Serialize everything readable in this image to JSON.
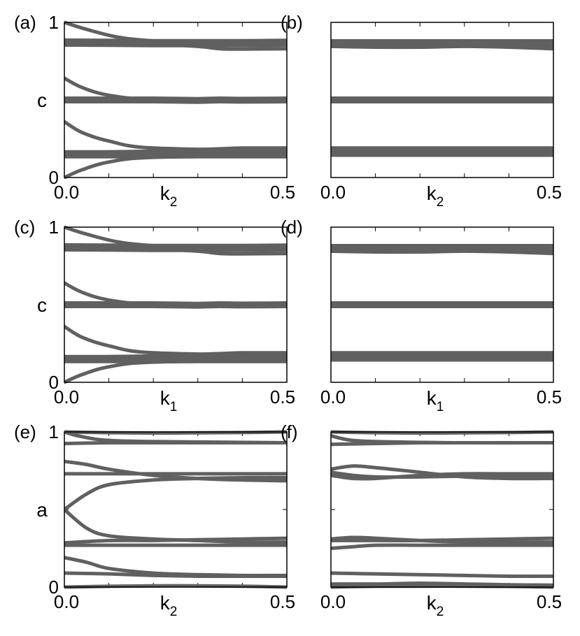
{
  "style": {
    "curve_color": "#606060",
    "frame_color": "#000000"
  },
  "chart_data": [
    {
      "id": "a",
      "panel_label": "(a)",
      "type": "line",
      "xlabel": {
        "base": "k",
        "sub": "2"
      },
      "ylabel": "c",
      "xlim": [
        0,
        0.5
      ],
      "ylim": [
        0,
        1
      ],
      "xticklabels": [
        "0.0",
        "0.5"
      ],
      "yticklabels": [
        "0",
        "1"
      ],
      "series": [
        {
          "x": [
            0,
            0.05,
            0.12,
            0.2,
            0.3,
            0.4,
            0.5
          ],
          "y": [
            1.0,
            0.955,
            0.905,
            0.88,
            0.87,
            0.87,
            0.87
          ],
          "width": 5
        },
        {
          "x": [
            0,
            0.1,
            0.2,
            0.3,
            0.4,
            0.5
          ],
          "y": [
            0.87,
            0.868,
            0.866,
            0.866,
            0.866,
            0.868
          ],
          "width": 12
        },
        {
          "x": [
            0,
            0.1,
            0.2,
            0.3,
            0.35,
            0.4,
            0.5
          ],
          "y": [
            0.855,
            0.855,
            0.86,
            0.845,
            0.83,
            0.828,
            0.83
          ],
          "width": 5
        },
        {
          "x": [
            0,
            0.04,
            0.1,
            0.2,
            0.5
          ],
          "y": [
            0.64,
            0.58,
            0.53,
            0.505,
            0.5
          ],
          "width": 5
        },
        {
          "x": [
            0,
            0.1,
            0.2,
            0.3,
            0.35,
            0.4,
            0.5
          ],
          "y": [
            0.5,
            0.5,
            0.5,
            0.497,
            0.5,
            0.498,
            0.5
          ],
          "width": 10
        },
        {
          "x": [
            0,
            0.04,
            0.1,
            0.2,
            0.5
          ],
          "y": [
            0.36,
            0.29,
            0.235,
            0.19,
            0.175
          ],
          "width": 5
        },
        {
          "x": [
            0,
            0.1,
            0.2,
            0.3,
            0.35,
            0.4,
            0.5
          ],
          "y": [
            0.155,
            0.165,
            0.17,
            0.18,
            0.185,
            0.19,
            0.19
          ],
          "width": 5
        },
        {
          "x": [
            0,
            0.1,
            0.2,
            0.3,
            0.4,
            0.5
          ],
          "y": [
            0.15,
            0.15,
            0.15,
            0.15,
            0.15,
            0.15
          ],
          "width": 12
        },
        {
          "x": [
            0,
            0.04,
            0.1,
            0.2,
            0.5
          ],
          "y": [
            0.0,
            0.05,
            0.1,
            0.13,
            0.14
          ],
          "width": 5
        }
      ]
    },
    {
      "id": "b",
      "panel_label": "(b)",
      "type": "line",
      "xlabel": {
        "base": "k",
        "sub": "2"
      },
      "ylabel": "",
      "xlim": [
        0,
        0.5
      ],
      "ylim": [
        0,
        1
      ],
      "xticklabels": [
        "0.0",
        "0.5"
      ],
      "yticklabels": [],
      "series": [
        {
          "x": [
            0,
            0.1,
            0.2,
            0.3,
            0.4,
            0.5
          ],
          "y": [
            0.845,
            0.84,
            0.84,
            0.845,
            0.84,
            0.83
          ],
          "width": 5
        },
        {
          "x": [
            0,
            0.1,
            0.2,
            0.3,
            0.4,
            0.5
          ],
          "y": [
            0.865,
            0.865,
            0.865,
            0.865,
            0.865,
            0.865
          ],
          "width": 12
        },
        {
          "x": [
            0,
            0.1,
            0.2,
            0.3,
            0.4,
            0.5
          ],
          "y": [
            0.5,
            0.5,
            0.5,
            0.5,
            0.5,
            0.5
          ],
          "width": 10
        },
        {
          "x": [
            0,
            0.1,
            0.2,
            0.3,
            0.4,
            0.5
          ],
          "y": [
            0.19,
            0.19,
            0.19,
            0.19,
            0.19,
            0.19
          ],
          "width": 5
        },
        {
          "x": [
            0,
            0.1,
            0.2,
            0.3,
            0.4,
            0.5
          ],
          "y": [
            0.16,
            0.16,
            0.16,
            0.16,
            0.16,
            0.16
          ],
          "width": 12
        }
      ]
    },
    {
      "id": "c",
      "panel_label": "(c)",
      "type": "line",
      "xlabel": {
        "base": "k",
        "sub": "1"
      },
      "ylabel": "c",
      "xlim": [
        0,
        0.5
      ],
      "ylim": [
        0,
        1
      ],
      "xticklabels": [
        "0.0",
        "0.5"
      ],
      "yticklabels": [
        "0",
        "1"
      ],
      "series": [
        {
          "x": [
            0,
            0.05,
            0.12,
            0.2,
            0.3,
            0.4,
            0.5
          ],
          "y": [
            1.0,
            0.955,
            0.905,
            0.88,
            0.87,
            0.87,
            0.87
          ],
          "width": 5
        },
        {
          "x": [
            0,
            0.1,
            0.2,
            0.3,
            0.4,
            0.5
          ],
          "y": [
            0.87,
            0.868,
            0.866,
            0.866,
            0.866,
            0.868
          ],
          "width": 12
        },
        {
          "x": [
            0,
            0.1,
            0.2,
            0.3,
            0.35,
            0.4,
            0.5
          ],
          "y": [
            0.855,
            0.855,
            0.86,
            0.845,
            0.83,
            0.828,
            0.83
          ],
          "width": 5
        },
        {
          "x": [
            0,
            0.04,
            0.1,
            0.2,
            0.5
          ],
          "y": [
            0.64,
            0.58,
            0.53,
            0.505,
            0.5
          ],
          "width": 5
        },
        {
          "x": [
            0,
            0.1,
            0.2,
            0.3,
            0.35,
            0.4,
            0.5
          ],
          "y": [
            0.5,
            0.5,
            0.5,
            0.497,
            0.5,
            0.498,
            0.5
          ],
          "width": 10
        },
        {
          "x": [
            0,
            0.04,
            0.1,
            0.2,
            0.5
          ],
          "y": [
            0.36,
            0.29,
            0.235,
            0.19,
            0.175
          ],
          "width": 5
        },
        {
          "x": [
            0,
            0.1,
            0.2,
            0.3,
            0.35,
            0.4,
            0.5
          ],
          "y": [
            0.155,
            0.165,
            0.17,
            0.18,
            0.185,
            0.19,
            0.19
          ],
          "width": 5
        },
        {
          "x": [
            0,
            0.1,
            0.2,
            0.3,
            0.4,
            0.5
          ],
          "y": [
            0.15,
            0.15,
            0.15,
            0.15,
            0.15,
            0.15
          ],
          "width": 12
        },
        {
          "x": [
            0,
            0.04,
            0.1,
            0.2,
            0.5
          ],
          "y": [
            0.0,
            0.05,
            0.1,
            0.13,
            0.14
          ],
          "width": 5
        }
      ]
    },
    {
      "id": "d",
      "panel_label": "(d)",
      "type": "line",
      "xlabel": {
        "base": "k",
        "sub": "1"
      },
      "ylabel": "",
      "xlim": [
        0,
        0.5
      ],
      "ylim": [
        0,
        1
      ],
      "xticklabels": [
        "0.0",
        "0.5"
      ],
      "yticklabels": [],
      "series": [
        {
          "x": [
            0,
            0.1,
            0.2,
            0.3,
            0.4,
            0.5
          ],
          "y": [
            0.845,
            0.84,
            0.84,
            0.845,
            0.84,
            0.83
          ],
          "width": 5
        },
        {
          "x": [
            0,
            0.1,
            0.2,
            0.3,
            0.4,
            0.5
          ],
          "y": [
            0.865,
            0.865,
            0.865,
            0.865,
            0.865,
            0.865
          ],
          "width": 12
        },
        {
          "x": [
            0,
            0.1,
            0.2,
            0.3,
            0.4,
            0.5
          ],
          "y": [
            0.5,
            0.5,
            0.5,
            0.5,
            0.5,
            0.5
          ],
          "width": 10
        },
        {
          "x": [
            0,
            0.1,
            0.2,
            0.3,
            0.4,
            0.5
          ],
          "y": [
            0.19,
            0.19,
            0.19,
            0.19,
            0.19,
            0.19
          ],
          "width": 5
        },
        {
          "x": [
            0,
            0.1,
            0.2,
            0.3,
            0.4,
            0.5
          ],
          "y": [
            0.16,
            0.16,
            0.16,
            0.16,
            0.16,
            0.16
          ],
          "width": 12
        }
      ]
    },
    {
      "id": "e",
      "panel_label": "(e)",
      "type": "line",
      "xlabel": {
        "base": "k",
        "sub": "2"
      },
      "ylabel": "a",
      "xlim": [
        0,
        0.5
      ],
      "ylim": [
        0,
        1
      ],
      "xticklabels": [
        "0.0",
        "0.5"
      ],
      "yticklabels": [
        "0",
        "1"
      ],
      "series": [
        {
          "x": [
            0,
            0.1,
            0.2,
            0.3,
            0.4,
            0.5
          ],
          "y": [
            1.0,
            0.995,
            0.993,
            0.994,
            0.996,
            1.0
          ],
          "width": 5
        },
        {
          "x": [
            0,
            0.03,
            0.08,
            0.15,
            0.3,
            0.5
          ],
          "y": [
            1.0,
            0.975,
            0.95,
            0.94,
            0.935,
            0.93
          ],
          "width": 5
        },
        {
          "x": [
            0,
            0.1,
            0.2,
            0.3,
            0.4,
            0.5
          ],
          "y": [
            0.925,
            0.93,
            0.93,
            0.93,
            0.93,
            0.93
          ],
          "width": 5
        },
        {
          "x": [
            0,
            0.05,
            0.1,
            0.2,
            0.3,
            0.4,
            0.5
          ],
          "y": [
            0.81,
            0.79,
            0.76,
            0.72,
            0.7,
            0.69,
            0.685
          ],
          "width": 5
        },
        {
          "x": [
            0,
            0.05,
            0.1,
            0.2,
            0.3,
            0.4,
            0.5
          ],
          "y": [
            0.5,
            0.6,
            0.66,
            0.69,
            0.7,
            0.705,
            0.705
          ],
          "width": 5
        },
        {
          "x": [
            0,
            0.1,
            0.2,
            0.3,
            0.4,
            0.5
          ],
          "y": [
            0.73,
            0.73,
            0.73,
            0.73,
            0.73,
            0.73
          ],
          "width": 5
        },
        {
          "x": [
            0,
            0.05,
            0.1,
            0.2,
            0.3,
            0.4,
            0.5
          ],
          "y": [
            0.5,
            0.38,
            0.33,
            0.31,
            0.3,
            0.29,
            0.29
          ],
          "width": 5
        },
        {
          "x": [
            0,
            0.1,
            0.2,
            0.3,
            0.4,
            0.5
          ],
          "y": [
            0.285,
            0.3,
            0.3,
            0.305,
            0.31,
            0.315
          ],
          "width": 5
        },
        {
          "x": [
            0,
            0.1,
            0.2,
            0.3,
            0.4,
            0.5
          ],
          "y": [
            0.27,
            0.27,
            0.27,
            0.27,
            0.27,
            0.27
          ],
          "width": 5
        },
        {
          "x": [
            0,
            0.05,
            0.1,
            0.2,
            0.3,
            0.4,
            0.5
          ],
          "y": [
            0.19,
            0.16,
            0.12,
            0.09,
            0.08,
            0.075,
            0.075
          ],
          "width": 5
        },
        {
          "x": [
            0,
            0.1,
            0.2,
            0.3,
            0.4,
            0.5
          ],
          "y": [
            0.09,
            0.085,
            0.075,
            0.07,
            0.07,
            0.07
          ],
          "width": 5
        },
        {
          "x": [
            0,
            0.1,
            0.2,
            0.3,
            0.4,
            0.5
          ],
          "y": [
            0.0,
            0.005,
            0.008,
            0.008,
            0.006,
            0.0
          ],
          "width": 5
        }
      ]
    },
    {
      "id": "f",
      "panel_label": "(f)",
      "type": "line",
      "xlabel": {
        "base": "k",
        "sub": "2"
      },
      "ylabel": "",
      "xlim": [
        0,
        0.5
      ],
      "ylim": [
        0,
        1
      ],
      "xticklabels": [
        "0.0",
        "0.5"
      ],
      "yticklabels": [],
      "series": [
        {
          "x": [
            0,
            0.1,
            0.2,
            0.3,
            0.4,
            0.5
          ],
          "y": [
            1.0,
            0.995,
            0.993,
            0.994,
            0.996,
            1.0
          ],
          "width": 5
        },
        {
          "x": [
            0,
            0.05,
            0.15,
            0.3,
            0.5
          ],
          "y": [
            0.975,
            0.945,
            0.935,
            0.93,
            0.93
          ],
          "width": 5
        },
        {
          "x": [
            0,
            0.1,
            0.2,
            0.3,
            0.4,
            0.5
          ],
          "y": [
            0.92,
            0.925,
            0.93,
            0.93,
            0.93,
            0.93
          ],
          "width": 5
        },
        {
          "x": [
            0,
            0.05,
            0.1,
            0.2,
            0.3,
            0.4,
            0.5
          ],
          "y": [
            0.76,
            0.78,
            0.77,
            0.74,
            0.71,
            0.7,
            0.7
          ],
          "width": 5
        },
        {
          "x": [
            0,
            0.05,
            0.1,
            0.2,
            0.3,
            0.4,
            0.5
          ],
          "y": [
            0.74,
            0.72,
            0.71,
            0.71,
            0.715,
            0.72,
            0.72
          ],
          "width": 5
        },
        {
          "x": [
            0,
            0.05,
            0.1,
            0.2,
            0.3,
            0.4,
            0.5
          ],
          "y": [
            0.72,
            0.7,
            0.7,
            0.72,
            0.73,
            0.73,
            0.73
          ],
          "width": 5
        },
        {
          "x": [
            0,
            0.05,
            0.1,
            0.2,
            0.3,
            0.4,
            0.5
          ],
          "y": [
            0.31,
            0.32,
            0.315,
            0.3,
            0.29,
            0.29,
            0.29
          ],
          "width": 5
        },
        {
          "x": [
            0,
            0.05,
            0.1,
            0.2,
            0.3,
            0.4,
            0.5
          ],
          "y": [
            0.3,
            0.3,
            0.3,
            0.3,
            0.305,
            0.31,
            0.315
          ],
          "width": 5
        },
        {
          "x": [
            0,
            0.05,
            0.1,
            0.2,
            0.3,
            0.4,
            0.5
          ],
          "y": [
            0.25,
            0.26,
            0.27,
            0.27,
            0.27,
            0.27,
            0.27
          ],
          "width": 5
        },
        {
          "x": [
            0,
            0.1,
            0.2,
            0.3,
            0.4,
            0.5
          ],
          "y": [
            0.09,
            0.085,
            0.08,
            0.075,
            0.07,
            0.07
          ],
          "width": 5
        },
        {
          "x": [
            0,
            0.1,
            0.2,
            0.3,
            0.4,
            0.5
          ],
          "y": [
            0.02,
            0.02,
            0.025,
            0.02,
            0.015,
            0.012
          ],
          "width": 5
        },
        {
          "x": [
            0,
            0.1,
            0.2,
            0.3,
            0.4,
            0.5
          ],
          "y": [
            0.0,
            0.005,
            0.006,
            0.006,
            0.004,
            0.0
          ],
          "width": 5
        }
      ]
    }
  ]
}
